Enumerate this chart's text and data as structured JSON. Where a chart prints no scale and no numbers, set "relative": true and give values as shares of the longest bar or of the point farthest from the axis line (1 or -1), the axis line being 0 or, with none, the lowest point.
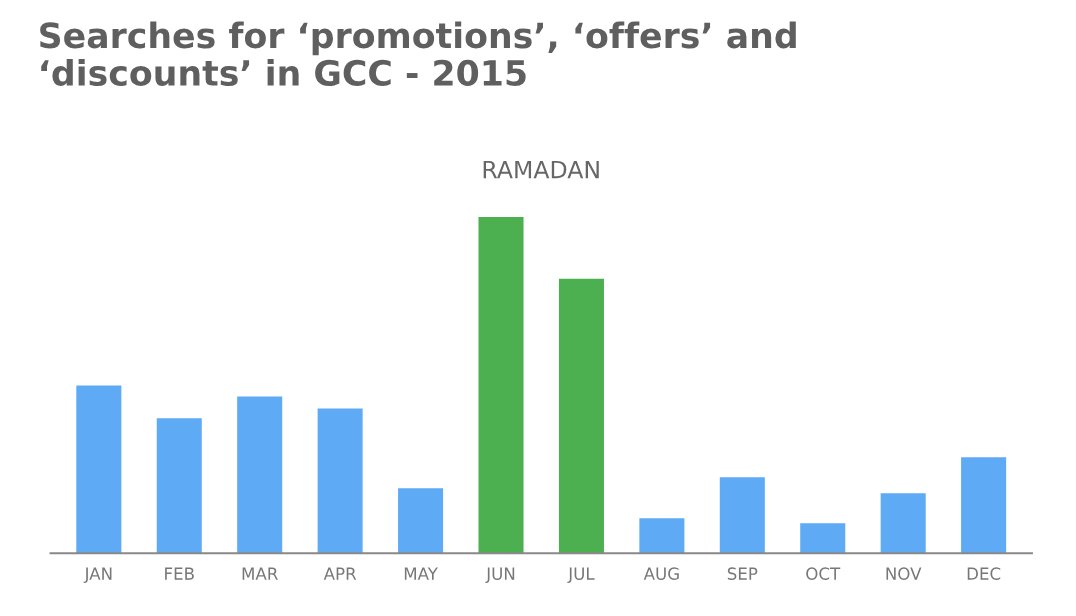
{
  "chart_data": {
    "type": "bar",
    "title": "Searches for ‘promotions’, ‘offers’ and\n‘discounts’ in GCC - 2015",
    "categories": [
      "JAN",
      "FEB",
      "MAR",
      "APR",
      "MAY",
      "JUN",
      "JUL",
      "AUG",
      "SEP",
      "OCT",
      "NOV",
      "DEC"
    ],
    "values": [
      0.499,
      0.401,
      0.466,
      0.43,
      0.193,
      1,
      0.816,
      0.104,
      0.226,
      0.089,
      0.178,
      0.285
    ],
    "colors": [
      "#5eaaf5",
      "#5eaaf5",
      "#5eaaf5",
      "#5eaaf5",
      "#5eaaf5",
      "#4caf50",
      "#4caf50",
      "#5eaaf5",
      "#5eaaf5",
      "#5eaaf5",
      "#5eaaf5",
      "#5eaaf5"
    ],
    "relative": true,
    "annotations": [
      "RAMADAN"
    ]
  }
}
